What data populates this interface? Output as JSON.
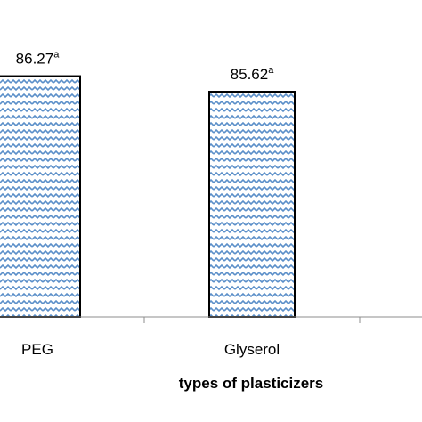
{
  "chart_data": {
    "type": "bar",
    "categories": [
      "PEG",
      "Glyserol"
    ],
    "values": [
      86.27,
      85.62
    ],
    "data_labels": [
      {
        "value": "86.27",
        "superscript": "a"
      },
      {
        "value": "85.62",
        "superscript": "a"
      }
    ],
    "xlabel": "types of plasticizers",
    "ylabel": "",
    "title": "",
    "grid": false,
    "legend": "none",
    "bar_fill_pattern": "zigzag",
    "colors": {
      "bar_pattern": "#5b8fc9",
      "bar_outline": "#000000",
      "axis": "#8c8c8c"
    }
  }
}
